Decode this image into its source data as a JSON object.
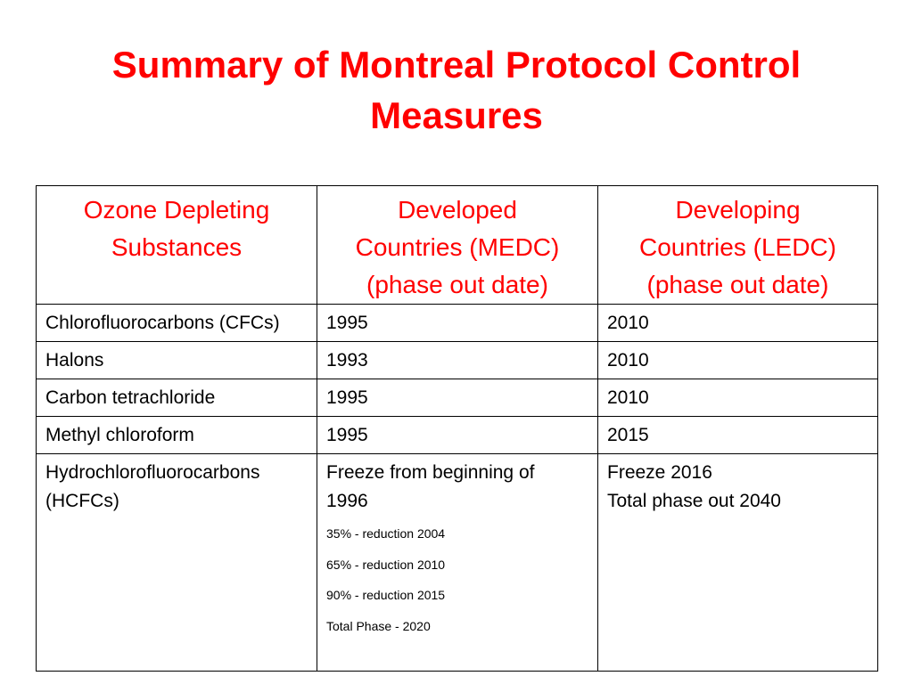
{
  "slide": {
    "title_line1": "Summary of Montreal Protocol Control",
    "title_line2": "Measures"
  },
  "table": {
    "headers": [
      {
        "lines": [
          "Ozone Depleting",
          "Substances"
        ]
      },
      {
        "lines": [
          "Developed",
          "Countries (MEDC)",
          "(phase out date)"
        ]
      },
      {
        "lines": [
          "Developing",
          "Countries (LEDC)",
          "(phase out date)"
        ]
      }
    ],
    "rows": [
      {
        "substance": "Chlorofluorocarbons (CFCs)",
        "medc": "1995",
        "ledc": "2010"
      },
      {
        "substance": "Halons",
        "medc": "1993",
        "ledc": "2010"
      },
      {
        "substance": "Carbon tetrachloride",
        "medc": "1995",
        "ledc": "2010"
      },
      {
        "substance": "Methyl chloroform",
        "medc": "1995",
        "ledc": "2015"
      }
    ],
    "hcfc": {
      "substance_lines": [
        "Hydrochlorofluorocarbons",
        "(HCFCs)"
      ],
      "medc_lines": [
        "Freeze from beginning of",
        "1996"
      ],
      "medc_steps": [
        "35% - reduction 2004",
        "65% - reduction 2010",
        "90% - reduction 2015",
        "Total Phase - 2020"
      ],
      "ledc_lines": [
        "Freeze 2016",
        "Total phase out 2040"
      ]
    }
  },
  "colors": {
    "title": "#ff0000",
    "header_text": "#ff0000",
    "body_text": "#000000",
    "border": "#000000"
  }
}
